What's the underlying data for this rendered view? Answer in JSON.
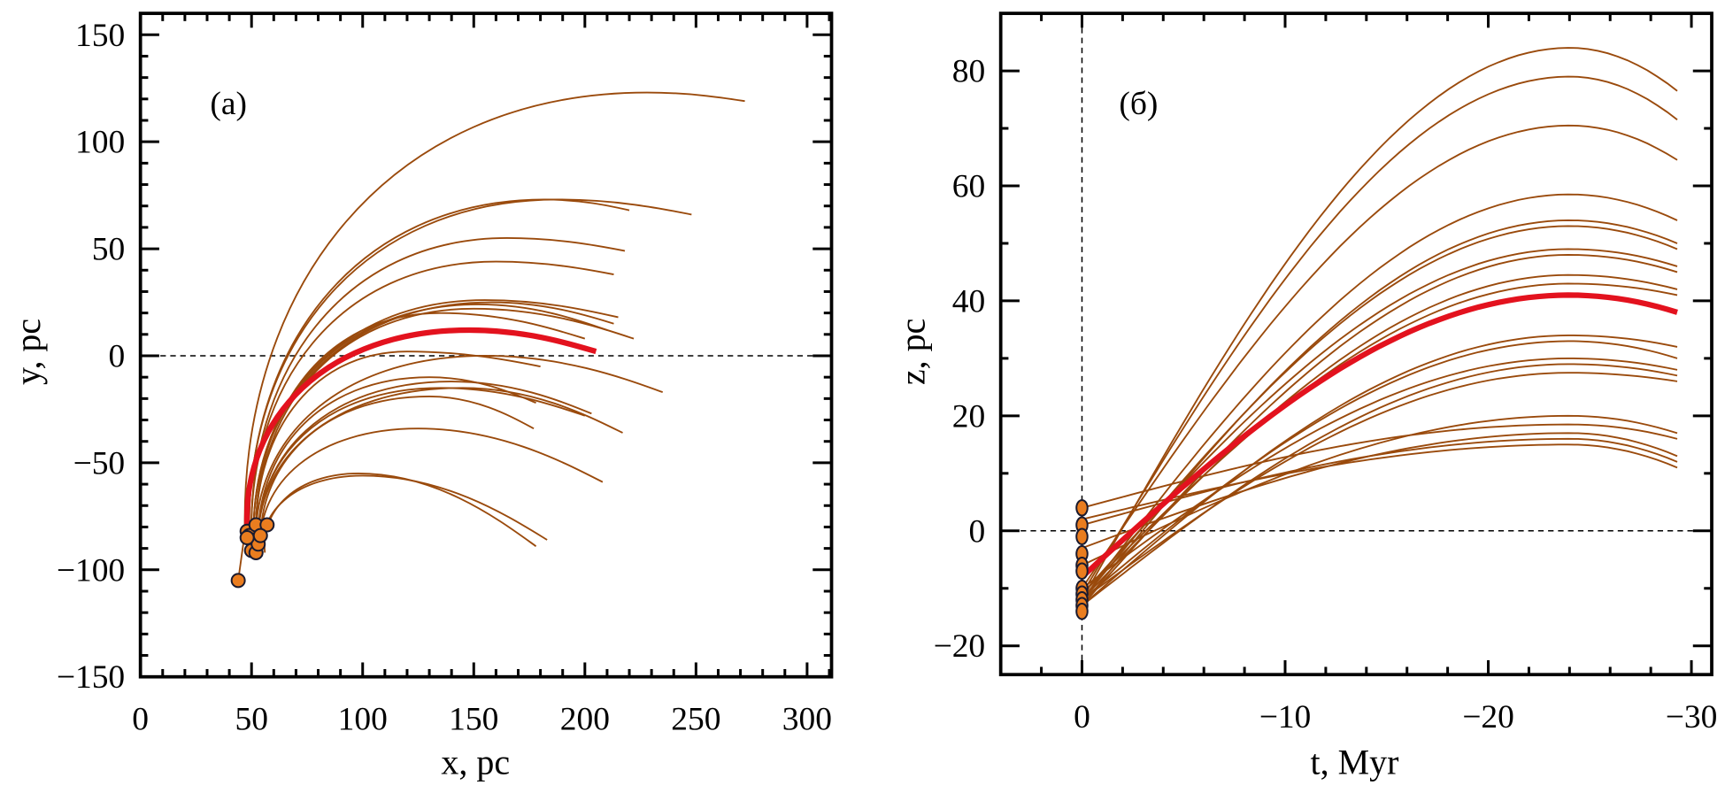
{
  "colors": {
    "orbit": "#9a4a0c",
    "mean": "#e3121e",
    "star_fill": "#ea7d1f",
    "star_edge": "#1a1a2e"
  },
  "chart_data": [
    {
      "id": "a",
      "type": "line",
      "panel_label": "(a)",
      "xlabel": "x, pc",
      "ylabel": "y, pc",
      "xlim": [
        0,
        311
      ],
      "ylim": [
        -150,
        160
      ],
      "xticks": [
        0,
        50,
        100,
        150,
        200,
        250,
        300
      ],
      "xtick_labels": [
        "0",
        "50",
        "100",
        "150",
        "200",
        "250",
        "300"
      ],
      "yticks": [
        -150,
        -100,
        -50,
        0,
        50,
        100,
        150
      ],
      "ytick_labels": [
        "-150",
        "-100",
        "-50",
        "0",
        "50",
        "100",
        "150"
      ],
      "x_minor_step": 10,
      "y_minor_step": 10,
      "reference_lines": [
        {
          "axis": "y",
          "value": 0,
          "style": "dashed"
        }
      ],
      "series_note": "Each orbit given as [start_x, start_y], [control_x, control_y], [peak_x, peak_y], [end_x, end_y] in pc",
      "orbits": [
        {
          "start": [
            47,
            -82
          ],
          "peak": [
            228,
            123
          ],
          "end": [
            272,
            119
          ]
        },
        {
          "start": [
            49,
            -84
          ],
          "peak": [
            188,
            73
          ],
          "end": [
            248,
            66
          ]
        },
        {
          "start": [
            49,
            -85
          ],
          "peak": [
            182,
            73
          ],
          "end": [
            220,
            68
          ]
        },
        {
          "start": [
            50,
            -86
          ],
          "peak": [
            165,
            55
          ],
          "end": [
            218,
            49
          ]
        },
        {
          "start": [
            50,
            -86
          ],
          "peak": [
            160,
            44
          ],
          "end": [
            213,
            38
          ]
        },
        {
          "start": [
            51,
            -87
          ],
          "peak": [
            155,
            26
          ],
          "end": [
            215,
            18
          ]
        },
        {
          "start": [
            51,
            -87
          ],
          "peak": [
            158,
            25
          ],
          "end": [
            213,
            15
          ]
        },
        {
          "start": [
            51,
            -87
          ],
          "peak": [
            152,
            24
          ],
          "end": [
            210,
            12
          ]
        },
        {
          "start": [
            52,
            -88
          ],
          "peak": [
            150,
            22
          ],
          "end": [
            222,
            8
          ]
        },
        {
          "start": [
            52,
            -88
          ],
          "peak": [
            135,
            20
          ],
          "end": [
            200,
            8
          ]
        },
        {
          "start": [
            52,
            -88
          ],
          "peak": [
            120,
            2
          ],
          "end": [
            180,
            -5
          ]
        },
        {
          "start": [
            52,
            -89
          ],
          "peak": [
            155,
            0
          ],
          "end": [
            235,
            -17
          ]
        },
        {
          "start": [
            53,
            -90
          ],
          "peak": [
            130,
            -10
          ],
          "end": [
            178,
            -22
          ]
        },
        {
          "start": [
            53,
            -90
          ],
          "peak": [
            140,
            -12
          ],
          "end": [
            203,
            -27
          ]
        },
        {
          "start": [
            53,
            -90
          ],
          "peak": [
            135,
            -15
          ],
          "end": [
            200,
            -28
          ]
        },
        {
          "start": [
            53,
            -90
          ],
          "peak": [
            145,
            -15
          ],
          "end": [
            217,
            -36
          ]
        },
        {
          "start": [
            54,
            -91
          ],
          "peak": [
            130,
            -19
          ],
          "end": [
            177,
            -34
          ]
        },
        {
          "start": [
            54,
            -91
          ],
          "peak": [
            125,
            -34
          ],
          "end": [
            208,
            -59
          ]
        },
        {
          "start": [
            55,
            -92
          ],
          "peak": [
            100,
            -56
          ],
          "end": [
            183,
            -86
          ]
        },
        {
          "start": [
            56,
            -92
          ],
          "peak": [
            98,
            -55
          ],
          "end": [
            178,
            -89
          ]
        },
        {
          "start": [
            44,
            -105
          ],
          "peak": [
            44,
            -105
          ],
          "end": [
            48,
            -75
          ]
        }
      ],
      "mean_orbit": {
        "start": [
          48,
          -80
        ],
        "peak": [
          148,
          12
        ],
        "end": [
          205,
          2
        ]
      },
      "stars": [
        [
          44,
          -105
        ],
        [
          48,
          -82
        ],
        [
          49,
          -84
        ],
        [
          50,
          -86
        ],
        [
          51,
          -89
        ],
        [
          50,
          -91
        ],
        [
          52,
          -92
        ],
        [
          53,
          -88
        ],
        [
          52,
          -79
        ],
        [
          57,
          -79
        ],
        [
          54,
          -84
        ],
        [
          48,
          -85
        ]
      ]
    },
    {
      "id": "b",
      "type": "line",
      "panel_label": "(б)",
      "xlabel": "t, Myr",
      "ylabel": "z, pc",
      "xlim": [
        4,
        -31
      ],
      "ylim": [
        -25,
        90
      ],
      "xticks": [
        0,
        -10,
        -20,
        -30
      ],
      "xtick_labels": [
        "0",
        "-10",
        "-20",
        "-30"
      ],
      "yticks": [
        -20,
        0,
        20,
        40,
        60,
        80
      ],
      "ytick_labels": [
        "-20",
        "0",
        "20",
        "40",
        "60",
        "80"
      ],
      "x_minor_step": 2,
      "y_minor_step": 10,
      "reference_lines": [
        {
          "axis": "y",
          "value": 0,
          "style": "dashed"
        },
        {
          "axis": "x",
          "value": 0,
          "style": "dashed"
        }
      ],
      "series_note": "Each orbit given as z at t=0, peak z near t=-24 Myr, z at t=-29.3 Myr",
      "orbits": [
        {
          "z0": -12,
          "peak": 84,
          "end": 76.5
        },
        {
          "z0": -11,
          "peak": 79,
          "end": 71.5
        },
        {
          "z0": -10,
          "peak": 70.5,
          "end": 64.5
        },
        {
          "z0": -12,
          "peak": 58.5,
          "end": 54
        },
        {
          "z0": -13,
          "peak": 54,
          "end": 50
        },
        {
          "z0": -12,
          "peak": 53,
          "end": 49
        },
        {
          "z0": -11,
          "peak": 49,
          "end": 46
        },
        {
          "z0": -13,
          "peak": 48,
          "end": 45
        },
        {
          "z0": -12,
          "peak": 44.5,
          "end": 42
        },
        {
          "z0": -11,
          "peak": 43,
          "end": 41
        },
        {
          "z0": -13,
          "peak": 34,
          "end": 32
        },
        {
          "z0": -12,
          "peak": 33,
          "end": 30
        },
        {
          "z0": -10,
          "peak": 30,
          "end": 28
        },
        {
          "z0": -13,
          "peak": 29,
          "end": 27
        },
        {
          "z0": -12,
          "peak": 27.5,
          "end": 26
        },
        {
          "z0": -6,
          "peak": 20,
          "end": 17
        },
        {
          "z0": 4,
          "peak": 18.5,
          "end": 16
        },
        {
          "z0": -3,
          "peak": 17,
          "end": 13
        },
        {
          "z0": 1,
          "peak": 16,
          "end": 12
        },
        {
          "z0": 2,
          "peak": 15,
          "end": 11
        }
      ],
      "mean_orbit": {
        "z0": -8,
        "peak": 41,
        "end": 38
      },
      "stars": [
        [
          0,
          4
        ],
        [
          0,
          1
        ],
        [
          0,
          -1
        ],
        [
          0,
          -4
        ],
        [
          0,
          -6
        ],
        [
          0,
          -7
        ],
        [
          0,
          -10
        ],
        [
          0,
          -11
        ],
        [
          0,
          -12
        ],
        [
          0,
          -13
        ],
        [
          0,
          -14
        ]
      ]
    }
  ]
}
